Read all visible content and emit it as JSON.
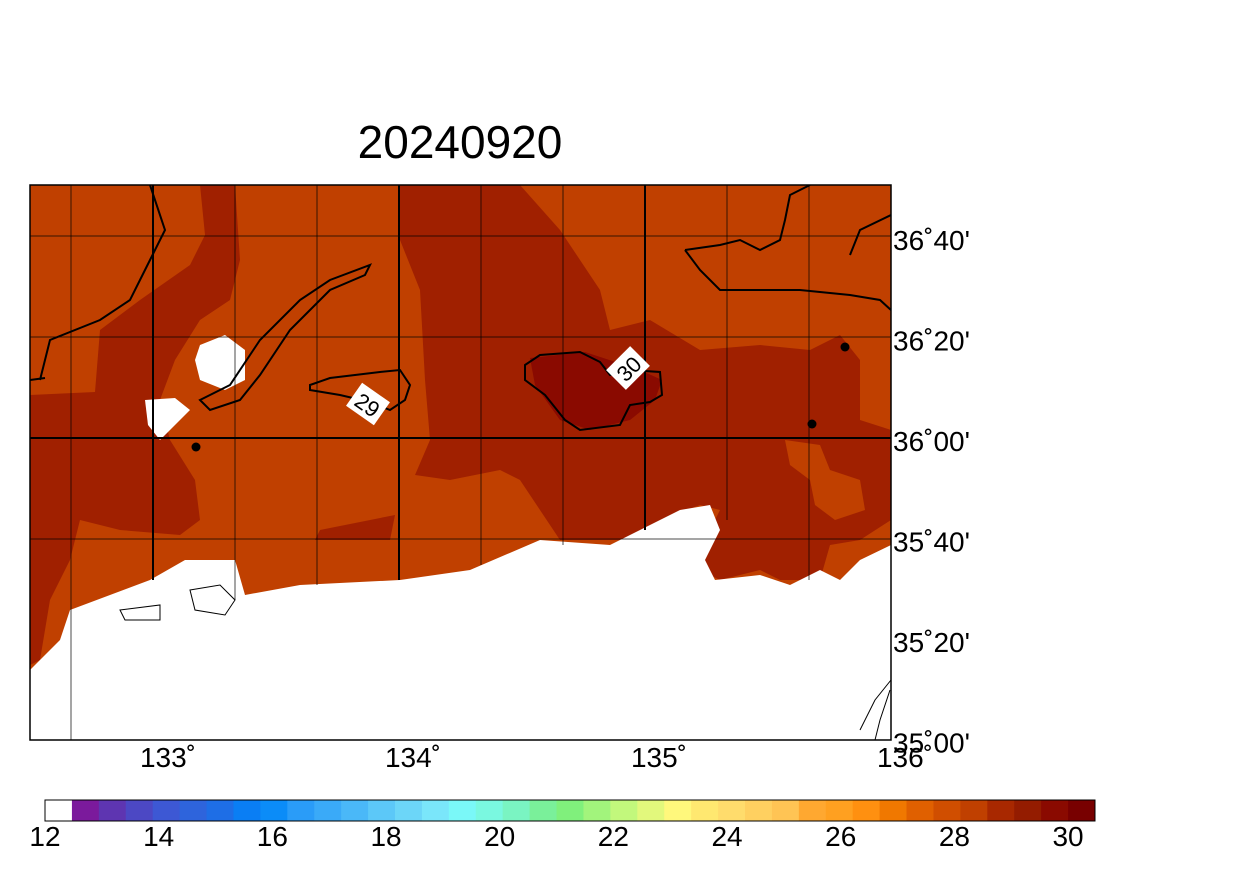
{
  "title": "20240920",
  "map": {
    "x_labels": [
      "133˚",
      "134˚",
      "135˚",
      "136˚"
    ],
    "y_labels": [
      "36˚40'",
      "36˚20'",
      "36˚00'",
      "35˚40'",
      "35˚20'",
      "35˚00'"
    ],
    "contour_labels": [
      "29",
      "30"
    ]
  },
  "colorbar": {
    "labels": [
      "12",
      "14",
      "16",
      "18",
      "20",
      "22",
      "24",
      "26",
      "28",
      "30"
    ],
    "colors": [
      "#ffffff",
      "#7b1a9c",
      "#5e35b1",
      "#4c48c4",
      "#3d58d4",
      "#2e64dc",
      "#1e6ee6",
      "#0a7ef4",
      "#0b8cf8",
      "#2a9cf8",
      "#3aaaf8",
      "#4ab8f8",
      "#5cc8f8",
      "#6cd6f8",
      "#7ae6fa",
      "#7af8f8",
      "#7af8e0",
      "#7af4c2",
      "#7af09a",
      "#80f07c",
      "#a2f47c",
      "#c2f87c",
      "#e2f87c",
      "#fff87c",
      "#ffe870",
      "#ffdc6c",
      "#ffd060",
      "#ffc454",
      "#ffa830",
      "#ffa020",
      "#ff9010",
      "#f07800",
      "#e06000",
      "#d04e00",
      "#c04000",
      "#a82800",
      "#941c00",
      "#8a0a00",
      "#780000"
    ]
  }
}
